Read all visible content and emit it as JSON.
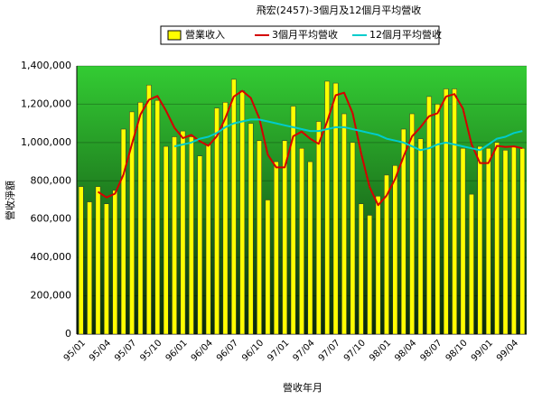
{
  "chart_data": {
    "type": "bar_line",
    "title": "飛宏(2457)-3個月及12個月平均營收",
    "y_label": "營收淨額",
    "x_label": "營收年月",
    "categories": [
      "95/01",
      null,
      null,
      "95/04",
      null,
      null,
      "95/07",
      null,
      null,
      "95/10",
      null,
      null,
      "96/01",
      null,
      null,
      "96/04",
      null,
      null,
      "96/07",
      null,
      null,
      "96/10",
      null,
      null,
      "97/01",
      null,
      null,
      "97/04",
      null,
      null,
      "97/07",
      null,
      null,
      "97/10",
      null,
      null,
      "98/01",
      null,
      null,
      "98/04",
      null,
      null,
      "98/07",
      null,
      null,
      "98/10",
      null,
      null,
      "99/01",
      null,
      null,
      "99/04",
      null
    ],
    "series": [
      {
        "name": "營業收入",
        "kind": "bar",
        "color": "#ffff00",
        "values": [
          770000,
          690000,
          770000,
          680000,
          750000,
          1070000,
          1160000,
          1210000,
          1300000,
          1220000,
          980000,
          1030000,
          1060000,
          1030000,
          930000,
          990000,
          1180000,
          1210000,
          1330000,
          1270000,
          1100000,
          1010000,
          700000,
          900000,
          1010000,
          1190000,
          970000,
          900000,
          1110000,
          1320000,
          1310000,
          1150000,
          1000000,
          680000,
          620000,
          720000,
          830000,
          880000,
          1070000,
          1150000,
          1020000,
          1240000,
          1200000,
          1280000,
          1280000,
          970000,
          730000,
          980000,
          970000,
          1000000,
          960000,
          980000,
          970000
        ]
      },
      {
        "name": "3個月平均營收",
        "kind": "line",
        "color": "#d40000",
        "values": [
          null,
          null,
          743000,
          713000,
          733000,
          833000,
          993000,
          1147000,
          1223000,
          1243000,
          1167000,
          1077000,
          1023000,
          1040000,
          1007000,
          983000,
          1033000,
          1127000,
          1240000,
          1270000,
          1233000,
          1127000,
          937000,
          870000,
          870000,
          1033000,
          1057000,
          1020000,
          993000,
          1110000,
          1247000,
          1260000,
          1153000,
          943000,
          767000,
          673000,
          723000,
          810000,
          927000,
          1033000,
          1080000,
          1137000,
          1153000,
          1240000,
          1253000,
          1177000,
          993000,
          893000,
          893000,
          983000,
          977000,
          980000,
          970000
        ]
      },
      {
        "name": "12個月平均營收",
        "kind": "line",
        "color": "#00cccc",
        "values": [
          null,
          null,
          null,
          null,
          null,
          null,
          null,
          null,
          null,
          null,
          null,
          980000,
          990000,
          1000000,
          1020000,
          1030000,
          1050000,
          1080000,
          1100000,
          1110000,
          1120000,
          1120000,
          1110000,
          1100000,
          1090000,
          1080000,
          1070000,
          1060000,
          1060000,
          1070000,
          1080000,
          1080000,
          1070000,
          1060000,
          1050000,
          1040000,
          1020000,
          1010000,
          1000000,
          980000,
          960000,
          970000,
          990000,
          1000000,
          990000,
          980000,
          970000,
          960000,
          990000,
          1020000,
          1030000,
          1050000,
          1060000
        ]
      }
    ],
    "ylim": [
      0,
      1400000
    ],
    "yticks": [
      {
        "value": 0,
        "label": "0"
      },
      {
        "value": 200000,
        "label": "200,000"
      },
      {
        "value": 400000,
        "label": "400,000"
      },
      {
        "value": 600000,
        "label": "600,000"
      },
      {
        "value": 800000,
        "label": "800,000"
      },
      {
        "value": 1000000,
        "label": "1,000,000"
      },
      {
        "value": 1200000,
        "label": "1,200,000"
      },
      {
        "value": 1400000,
        "label": "1,400,000"
      }
    ],
    "grid": true
  }
}
